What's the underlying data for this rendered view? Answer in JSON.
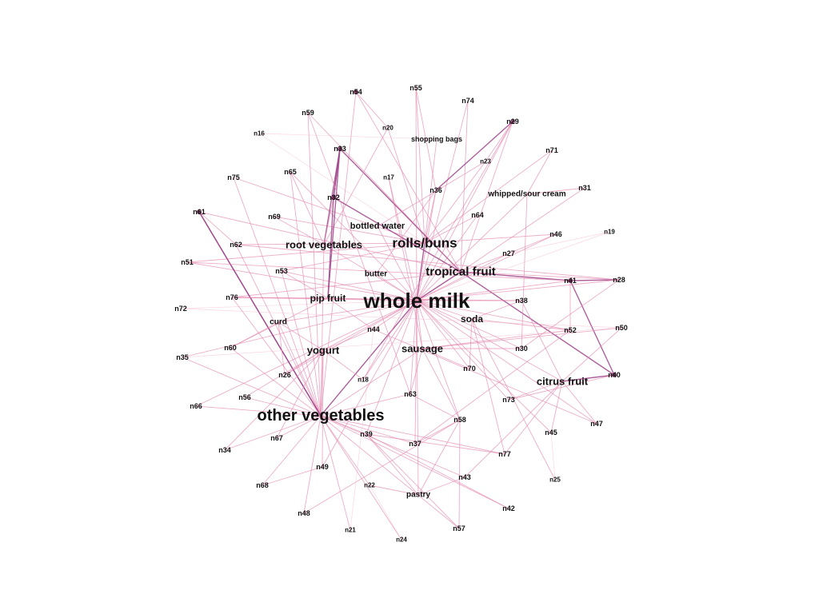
{
  "graph": {
    "type": "network",
    "edge_color_light": "#f4b6c8",
    "edge_color_mid": "#e48ab0",
    "edge_color_dark": "#a0458a",
    "node_dot_color": "#6b1f4f",
    "nodes": [
      {
        "id": "whole_milk",
        "label": "whole milk",
        "weight": 10
      },
      {
        "id": "other_veg",
        "label": "other vegetables",
        "weight": 8
      },
      {
        "id": "rolls",
        "label": "rolls/buns",
        "weight": 6
      },
      {
        "id": "tropical",
        "label": "tropical fruit",
        "weight": 5
      },
      {
        "id": "root_veg",
        "label": "root vegetables",
        "weight": 4
      },
      {
        "id": "yogurt",
        "label": "yogurt",
        "weight": 4
      },
      {
        "id": "sausage",
        "label": "sausage",
        "weight": 4
      },
      {
        "id": "citrus",
        "label": "citrus fruit",
        "weight": 4
      },
      {
        "id": "pip",
        "label": "pip fruit",
        "weight": 3
      },
      {
        "id": "soda",
        "label": "soda",
        "weight": 3
      },
      {
        "id": "bottled",
        "label": "bottled water",
        "weight": 2
      },
      {
        "id": "butter",
        "label": "butter",
        "weight": 1
      },
      {
        "id": "curd",
        "label": "curd",
        "weight": 1
      },
      {
        "id": "whipped",
        "label": "whipped/sour cream",
        "weight": 1
      },
      {
        "id": "shopping",
        "label": "shopping bags",
        "weight": 0
      },
      {
        "id": "pastry",
        "label": "pastry",
        "weight": 1
      },
      {
        "id": "n54",
        "label": "n54",
        "weight": 0
      },
      {
        "id": "n55",
        "label": "n55",
        "weight": 0
      },
      {
        "id": "n74",
        "label": "n74",
        "weight": 0
      },
      {
        "id": "n59",
        "label": "n59",
        "weight": 0
      },
      {
        "id": "n20",
        "label": "n20",
        "weight": -1
      },
      {
        "id": "n29",
        "label": "n29",
        "weight": 0
      },
      {
        "id": "n16",
        "label": "n16",
        "weight": -1
      },
      {
        "id": "n33",
        "label": "n33",
        "weight": 0
      },
      {
        "id": "n71",
        "label": "n71",
        "weight": 0
      },
      {
        "id": "n23",
        "label": "n23",
        "weight": -1
      },
      {
        "id": "n75",
        "label": "n75",
        "weight": 0
      },
      {
        "id": "n65",
        "label": "n65",
        "weight": 0
      },
      {
        "id": "n17",
        "label": "n17",
        "weight": -1
      },
      {
        "id": "n36",
        "label": "n36",
        "weight": 0
      },
      {
        "id": "n31",
        "label": "n31",
        "weight": 0
      },
      {
        "id": "n32",
        "label": "n32",
        "weight": 0
      },
      {
        "id": "n61",
        "label": "n61",
        "weight": 0
      },
      {
        "id": "n69",
        "label": "n69",
        "weight": 0
      },
      {
        "id": "n64",
        "label": "n64",
        "weight": 0
      },
      {
        "id": "n46",
        "label": "n46",
        "weight": 0
      },
      {
        "id": "n19",
        "label": "n19",
        "weight": -1
      },
      {
        "id": "n62",
        "label": "n62",
        "weight": 0
      },
      {
        "id": "n27",
        "label": "n27",
        "weight": 0
      },
      {
        "id": "n51",
        "label": "n51",
        "weight": 0
      },
      {
        "id": "n53",
        "label": "n53",
        "weight": 0
      },
      {
        "id": "n41",
        "label": "n41",
        "weight": 0
      },
      {
        "id": "n28",
        "label": "n28",
        "weight": 0
      },
      {
        "id": "n72",
        "label": "n72",
        "weight": 0
      },
      {
        "id": "n76",
        "label": "n76",
        "weight": 0
      },
      {
        "id": "n38",
        "label": "n38",
        "weight": 0
      },
      {
        "id": "n52",
        "label": "n52",
        "weight": 0
      },
      {
        "id": "n50",
        "label": "n50",
        "weight": 0
      },
      {
        "id": "n44",
        "label": "n44",
        "weight": 0
      },
      {
        "id": "n60",
        "label": "n60",
        "weight": 0
      },
      {
        "id": "n30",
        "label": "n30",
        "weight": 0
      },
      {
        "id": "n35",
        "label": "n35",
        "weight": 0
      },
      {
        "id": "n26",
        "label": "n26",
        "weight": 0
      },
      {
        "id": "n18",
        "label": "n18",
        "weight": -1
      },
      {
        "id": "n70",
        "label": "n70",
        "weight": 0
      },
      {
        "id": "n40",
        "label": "n40",
        "weight": 0
      },
      {
        "id": "n56",
        "label": "n56",
        "weight": 0
      },
      {
        "id": "n63",
        "label": "n63",
        "weight": 0
      },
      {
        "id": "n73",
        "label": "n73",
        "weight": 0
      },
      {
        "id": "n66",
        "label": "n66",
        "weight": 0
      },
      {
        "id": "n58",
        "label": "n58",
        "weight": 0
      },
      {
        "id": "n47",
        "label": "n47",
        "weight": 0
      },
      {
        "id": "n45",
        "label": "n45",
        "weight": 0
      },
      {
        "id": "n67",
        "label": "n67",
        "weight": 0
      },
      {
        "id": "n39",
        "label": "n39",
        "weight": 0
      },
      {
        "id": "n37",
        "label": "n37",
        "weight": 0
      },
      {
        "id": "n34",
        "label": "n34",
        "weight": 0
      },
      {
        "id": "n77",
        "label": "n77",
        "weight": 0
      },
      {
        "id": "n49",
        "label": "n49",
        "weight": 0
      },
      {
        "id": "n43",
        "label": "n43",
        "weight": 0
      },
      {
        "id": "n25",
        "label": "n25",
        "weight": -1
      },
      {
        "id": "n68",
        "label": "n68",
        "weight": 0
      },
      {
        "id": "n22",
        "label": "n22",
        "weight": -1
      },
      {
        "id": "n42",
        "label": "n42",
        "weight": 0
      },
      {
        "id": "n48",
        "label": "n48",
        "weight": 0
      },
      {
        "id": "n57",
        "label": "n57",
        "weight": 0
      },
      {
        "id": "n21",
        "label": "n21",
        "weight": -1
      },
      {
        "id": "n24",
        "label": "n24",
        "weight": -1
      }
    ],
    "dark_nodes": [
      "n33",
      "n32",
      "n61",
      "n41",
      "n40",
      "n29",
      "n54"
    ],
    "edges": [
      [
        "whole_milk",
        "other_veg",
        2
      ],
      [
        "whole_milk",
        "rolls",
        2
      ],
      [
        "whole_milk",
        "tropical",
        2
      ],
      [
        "whole_milk",
        "root_veg",
        1
      ],
      [
        "whole_milk",
        "yogurt",
        1
      ],
      [
        "whole_milk",
        "sausage",
        1
      ],
      [
        "whole_milk",
        "citrus",
        1
      ],
      [
        "whole_milk",
        "pip",
        1
      ],
      [
        "whole_milk",
        "soda",
        1
      ],
      [
        "whole_milk",
        "bottled",
        1
      ],
      [
        "whole_milk",
        "butter",
        1
      ],
      [
        "whole_milk",
        "curd",
        1
      ],
      [
        "whole_milk",
        "whipped",
        1
      ],
      [
        "whole_milk",
        "pastry",
        1
      ],
      [
        "whole_milk",
        "n55",
        1
      ],
      [
        "whole_milk",
        "n36",
        1
      ],
      [
        "whole_milk",
        "n64",
        1
      ],
      [
        "whole_milk",
        "n44",
        1
      ],
      [
        "whole_milk",
        "n63",
        1
      ],
      [
        "whole_milk",
        "n58",
        1
      ],
      [
        "whole_milk",
        "n37",
        1
      ],
      [
        "whole_milk",
        "n52",
        1
      ],
      [
        "whole_milk",
        "n70",
        1
      ],
      [
        "whole_milk",
        "n76",
        1
      ],
      [
        "whole_milk",
        "n53",
        1
      ],
      [
        "whole_milk",
        "n51",
        1
      ],
      [
        "whole_milk",
        "n30",
        1
      ],
      [
        "whole_milk",
        "n29",
        1
      ],
      [
        "whole_milk",
        "n74",
        1
      ],
      [
        "whole_milk",
        "n46",
        1
      ],
      [
        "whole_milk",
        "n27",
        1
      ],
      [
        "whole_milk",
        "n38",
        1
      ],
      [
        "whole_milk",
        "n73",
        1
      ],
      [
        "whole_milk",
        "n47",
        1
      ],
      [
        "whole_milk",
        "n45",
        1
      ],
      [
        "whole_milk",
        "n39",
        1
      ],
      [
        "whole_milk",
        "n49",
        1
      ],
      [
        "whole_milk",
        "n17",
        1
      ],
      [
        "whole_milk",
        "n65",
        1
      ],
      [
        "whole_milk",
        "n72",
        0
      ],
      [
        "whole_milk",
        "n19",
        0
      ],
      [
        "whole_milk",
        "n35",
        1
      ],
      [
        "whole_milk",
        "n26",
        1
      ],
      [
        "whole_milk",
        "n18",
        1
      ],
      [
        "whole_milk",
        "n66",
        1
      ],
      [
        "other_veg",
        "root_veg",
        1
      ],
      [
        "other_veg",
        "yogurt",
        1
      ],
      [
        "other_veg",
        "n59",
        1
      ],
      [
        "other_veg",
        "n54",
        1
      ],
      [
        "other_veg",
        "n61",
        2
      ],
      [
        "other_veg",
        "n62",
        1
      ],
      [
        "other_veg",
        "n60",
        1
      ],
      [
        "other_veg",
        "n35",
        1
      ],
      [
        "other_veg",
        "n66",
        1
      ],
      [
        "other_veg",
        "n56",
        1
      ],
      [
        "other_veg",
        "n34",
        1
      ],
      [
        "other_veg",
        "n67",
        1
      ],
      [
        "other_veg",
        "n68",
        1
      ],
      [
        "other_veg",
        "n48",
        1
      ],
      [
        "other_veg",
        "n21",
        1
      ],
      [
        "other_veg",
        "n22",
        1
      ],
      [
        "other_veg",
        "n24",
        1
      ],
      [
        "other_veg",
        "n42",
        1
      ],
      [
        "other_veg",
        "n57",
        1
      ],
      [
        "other_veg",
        "n43",
        1
      ],
      [
        "other_veg",
        "n77",
        1
      ],
      [
        "other_veg",
        "n39",
        1
      ],
      [
        "other_veg",
        "n37",
        1
      ],
      [
        "other_veg",
        "n75",
        1
      ],
      [
        "other_veg",
        "n65",
        1
      ],
      [
        "other_veg",
        "n53",
        1
      ],
      [
        "other_veg",
        "n76",
        1
      ],
      [
        "other_veg",
        "curd",
        1
      ],
      [
        "other_veg",
        "sausage",
        1
      ],
      [
        "other_veg",
        "n63",
        1
      ],
      [
        "rolls",
        "n55",
        1
      ],
      [
        "rolls",
        "n23",
        1
      ],
      [
        "rolls",
        "n71",
        1
      ],
      [
        "rolls",
        "n62",
        1
      ],
      [
        "rolls",
        "n51",
        1
      ],
      [
        "rolls",
        "n16",
        0
      ],
      [
        "rolls",
        "n69",
        1
      ],
      [
        "rolls",
        "n36",
        1
      ],
      [
        "rolls",
        "n46",
        1
      ],
      [
        "rolls",
        "n64",
        1
      ],
      [
        "rolls",
        "n53",
        1
      ],
      [
        "rolls",
        "shopping",
        1
      ],
      [
        "rolls",
        "n75",
        1
      ],
      [
        "rolls",
        "n20",
        1
      ],
      [
        "tropical",
        "n33",
        2
      ],
      [
        "tropical",
        "n54",
        1
      ],
      [
        "tropical",
        "n59",
        1
      ],
      [
        "tropical",
        "n74",
        1
      ],
      [
        "tropical",
        "n41",
        2
      ],
      [
        "tropical",
        "n28",
        1
      ],
      [
        "tropical",
        "n40",
        2
      ],
      [
        "tropical",
        "n31",
        1
      ],
      [
        "tropical",
        "n27",
        1
      ],
      [
        "tropical",
        "n76",
        1
      ],
      [
        "tropical",
        "n61",
        1
      ],
      [
        "root_veg",
        "n33",
        2
      ],
      [
        "root_veg",
        "n32",
        1
      ],
      [
        "root_veg",
        "n20",
        1
      ],
      [
        "root_veg",
        "n69",
        1
      ],
      [
        "root_veg",
        "n65",
        1
      ],
      [
        "n33",
        "n32",
        2
      ],
      [
        "n33",
        "pip",
        2
      ],
      [
        "n32",
        "pip",
        2
      ],
      [
        "n32",
        "tropical",
        2
      ],
      [
        "n32",
        "n33",
        2
      ],
      [
        "n61",
        "other_veg",
        2
      ],
      [
        "n61",
        "n62",
        1
      ],
      [
        "n41",
        "n40",
        2
      ],
      [
        "n41",
        "n28",
        2
      ],
      [
        "n40",
        "citrus",
        2
      ],
      [
        "n41",
        "n52",
        1
      ],
      [
        "citrus",
        "n45",
        1
      ],
      [
        "citrus",
        "n47",
        1
      ],
      [
        "citrus",
        "n77",
        1
      ],
      [
        "citrus",
        "n43",
        1
      ],
      [
        "citrus",
        "n50",
        1
      ],
      [
        "citrus",
        "n38",
        1
      ],
      [
        "citrus",
        "n73",
        1
      ],
      [
        "sausage",
        "n70",
        1
      ],
      [
        "sausage",
        "n63",
        1
      ],
      [
        "sausage",
        "n58",
        1
      ],
      [
        "sausage",
        "n30",
        1
      ],
      [
        "sausage",
        "n52",
        1
      ],
      [
        "sausage",
        "n50",
        1
      ],
      [
        "soda",
        "n38",
        1
      ],
      [
        "soda",
        "n70",
        1
      ],
      [
        "soda",
        "n25",
        1
      ],
      [
        "soda",
        "n77",
        1
      ],
      [
        "soda",
        "n52",
        1
      ],
      [
        "yogurt",
        "n26",
        1
      ],
      [
        "yogurt",
        "n56",
        1
      ],
      [
        "yogurt",
        "n49",
        1
      ],
      [
        "yogurt",
        "n18",
        1
      ],
      [
        "yogurt",
        "n44",
        1
      ],
      [
        "yogurt",
        "curd",
        1
      ],
      [
        "pip",
        "n53",
        1
      ],
      [
        "pip",
        "n76",
        1
      ],
      [
        "pip",
        "n60",
        1
      ],
      [
        "pip",
        "n44",
        1
      ],
      [
        "curd",
        "n26",
        1
      ],
      [
        "curd",
        "n60",
        1
      ],
      [
        "whipped",
        "n71",
        1
      ],
      [
        "whipped",
        "n30",
        1
      ],
      [
        "whipped",
        "n31",
        1
      ],
      [
        "pastry",
        "n58",
        1
      ],
      [
        "pastry",
        "n39",
        1
      ],
      [
        "pastry",
        "n43",
        1
      ],
      [
        "pastry",
        "n22",
        1
      ],
      [
        "n58",
        "n57",
        1
      ],
      [
        "n58",
        "n37",
        1
      ],
      [
        "n58",
        "n63",
        1
      ],
      [
        "n39",
        "n42",
        1
      ],
      [
        "n39",
        "n57",
        1
      ],
      [
        "n39",
        "n77",
        1
      ],
      [
        "n16",
        "shopping",
        0
      ],
      [
        "n29",
        "n36",
        2
      ],
      [
        "n29",
        "n23",
        1
      ],
      [
        "n29",
        "tropical",
        1
      ],
      [
        "n55",
        "n36",
        1
      ],
      [
        "n54",
        "n20",
        1
      ],
      [
        "n59",
        "n63",
        1
      ],
      [
        "n62",
        "n28",
        1
      ],
      [
        "n72",
        "n50",
        0
      ],
      [
        "n51",
        "n41",
        1
      ],
      [
        "n76",
        "n38",
        1
      ],
      [
        "n46",
        "n27",
        1
      ],
      [
        "n19",
        "n27",
        0
      ],
      [
        "n17",
        "sausage",
        1
      ],
      [
        "n44",
        "n47",
        1
      ],
      [
        "n45",
        "n25",
        0
      ],
      [
        "n37",
        "n52",
        1
      ],
      [
        "n35",
        "n50",
        0
      ],
      [
        "n18",
        "n29",
        1
      ],
      [
        "n73",
        "n40",
        1
      ],
      [
        "n67",
        "yogurt",
        1
      ],
      [
        "n34",
        "yogurt",
        1
      ],
      [
        "n68",
        "n49",
        1
      ],
      [
        "n48",
        "n58",
        1
      ],
      [
        "n21",
        "n44",
        0
      ],
      [
        "n24",
        "n22",
        0
      ],
      [
        "butter",
        "n36",
        1
      ],
      [
        "bottled",
        "n23",
        1
      ],
      [
        "n30",
        "n28",
        1
      ],
      [
        "n28",
        "whole_milk",
        1
      ],
      [
        "n41",
        "whole_milk",
        1
      ]
    ]
  }
}
